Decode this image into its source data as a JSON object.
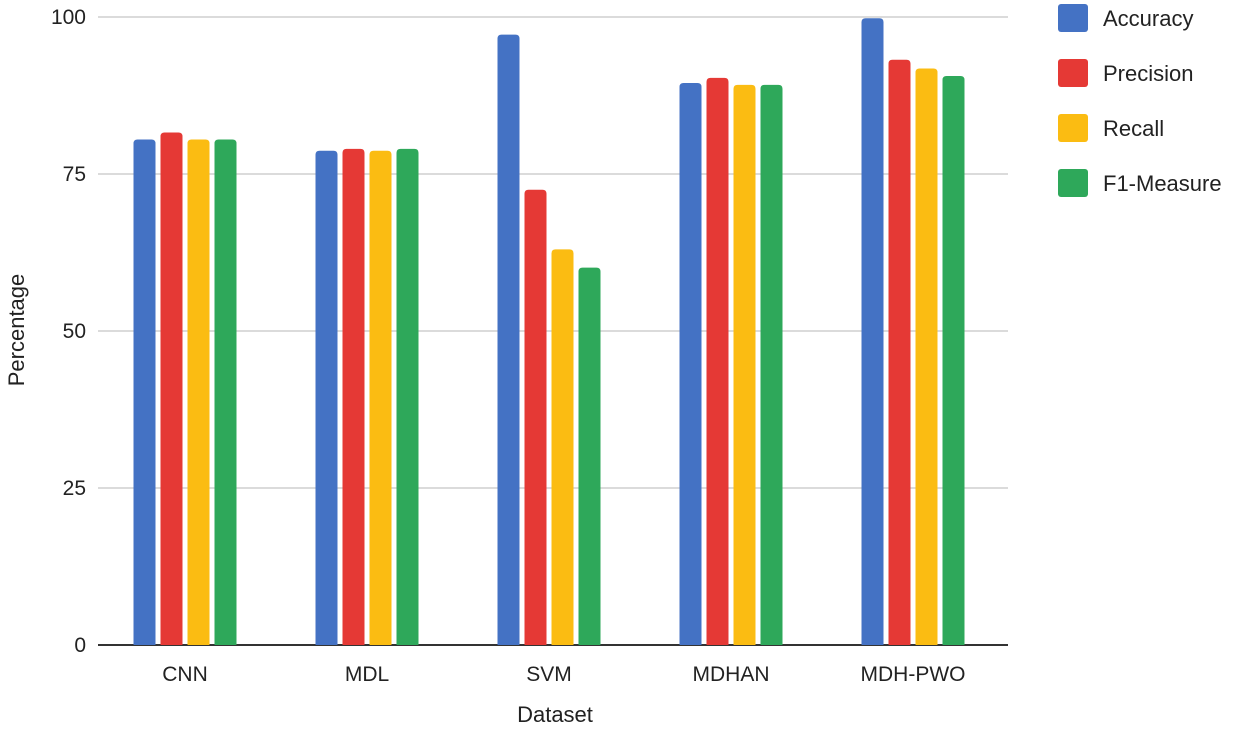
{
  "chart_data": {
    "type": "bar",
    "title": "",
    "xlabel": "Dataset",
    "ylabel": "Percentage",
    "ylim": [
      0,
      100
    ],
    "yticks": [
      0,
      25,
      50,
      75,
      100
    ],
    "grid": true,
    "legend_position": "right",
    "categories": [
      "CNN",
      "MDL",
      "SVM",
      "MDHAN",
      "MDH-PWO"
    ],
    "series": [
      {
        "name": "Accuracy",
        "color": "#4472c4",
        "values": [
          80.5,
          78.7,
          97.2,
          89.5,
          99.8
        ]
      },
      {
        "name": "Precision",
        "color": "#e53935",
        "values": [
          81.6,
          79.0,
          72.5,
          90.3,
          93.2
        ]
      },
      {
        "name": "Recall",
        "color": "#fbbc12",
        "values": [
          80.5,
          78.7,
          63.0,
          89.2,
          91.8
        ]
      },
      {
        "name": "F1-Measure",
        "color": "#2ea85a",
        "values": [
          80.5,
          79.0,
          60.1,
          89.2,
          90.6
        ]
      }
    ]
  }
}
